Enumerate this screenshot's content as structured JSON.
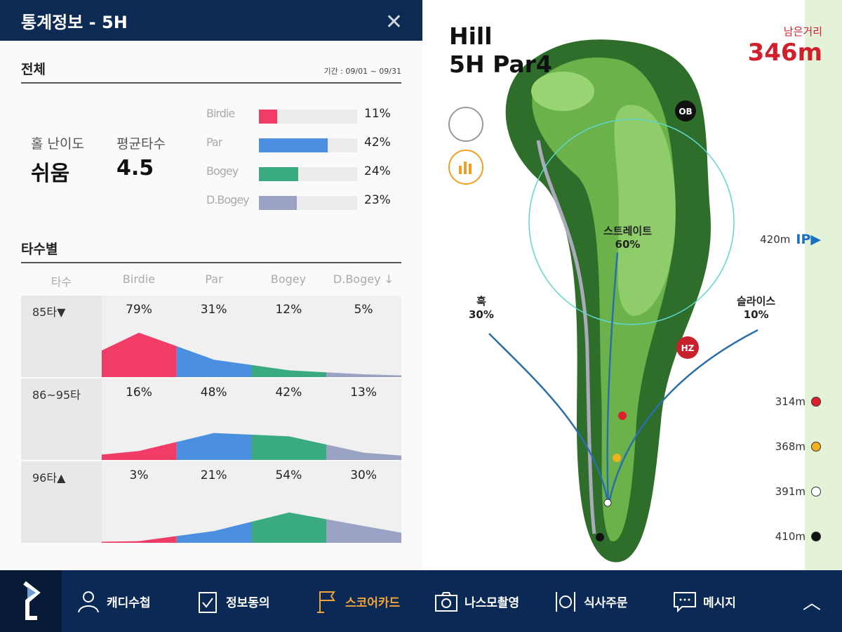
{
  "header": {
    "title": "통계정보 - 5H",
    "close_icon": "close-icon"
  },
  "overall": {
    "title": "전체",
    "period": "기간 : 09/01 ~ 09/31",
    "difficulty_label": "홀 난이도",
    "difficulty_value": "쉬움",
    "avg_label": "평균타수",
    "avg_value": "4.5",
    "bars": [
      {
        "name": "Birdie",
        "value": 11,
        "text": "11%",
        "color": "#f03c66"
      },
      {
        "name": "Par",
        "value": 42,
        "text": "42%",
        "color": "#4a8fe0"
      },
      {
        "name": "Bogey",
        "value": 24,
        "text": "24%",
        "color": "#3aaa80"
      },
      {
        "name": "D.Bogey",
        "value": 23,
        "text": "23%",
        "color": "#9aa3c4"
      }
    ]
  },
  "by_score": {
    "title": "타수별",
    "headers": [
      "타수",
      "Birdie",
      "Par",
      "Bogey",
      "D.Bogey ↓"
    ],
    "rows": [
      {
        "label": "85타▼",
        "values": [
          79,
          31,
          12,
          5
        ],
        "texts": [
          "79%",
          "31%",
          "12%",
          "5%"
        ]
      },
      {
        "label": "86~95타",
        "values": [
          16,
          48,
          42,
          13
        ],
        "texts": [
          "16%",
          "48%",
          "42%",
          "13%"
        ]
      },
      {
        "label": "96타▲",
        "values": [
          3,
          21,
          54,
          30
        ],
        "texts": [
          "3%",
          "21%",
          "54%",
          "30%"
        ]
      }
    ]
  },
  "map": {
    "course": "Hill",
    "hole": "5H Par4",
    "remaining_label": "남은거리",
    "remaining_value": "346m",
    "ob": "OB",
    "hz": "HZ",
    "straight": "스트레이트",
    "straight_pct": "60%",
    "hook": "훅",
    "hook_pct": "30%",
    "slice": "슬라이스",
    "slice_pct": "10%",
    "ip": "420m",
    "ip_label": "IP▶",
    "distances": [
      {
        "text": "314m",
        "color": "#e0202c"
      },
      {
        "text": "368m",
        "color": "#f0b020"
      },
      {
        "text": "391m",
        "color": "#ffffff"
      },
      {
        "text": "410m",
        "color": "#111111"
      }
    ]
  },
  "nav": {
    "items": [
      {
        "label": "캐디수첩",
        "icon": "caddie-icon"
      },
      {
        "label": "정보동의",
        "icon": "clipboard-check-icon"
      },
      {
        "label": "스코어카드",
        "icon": "flag-icon",
        "active": true
      },
      {
        "label": "나스모촬영",
        "icon": "camera-icon"
      },
      {
        "label": "식사주문",
        "icon": "meal-icon"
      },
      {
        "label": "메시지",
        "icon": "message-icon"
      }
    ],
    "expand_icon": "chevron-up-icon"
  }
}
